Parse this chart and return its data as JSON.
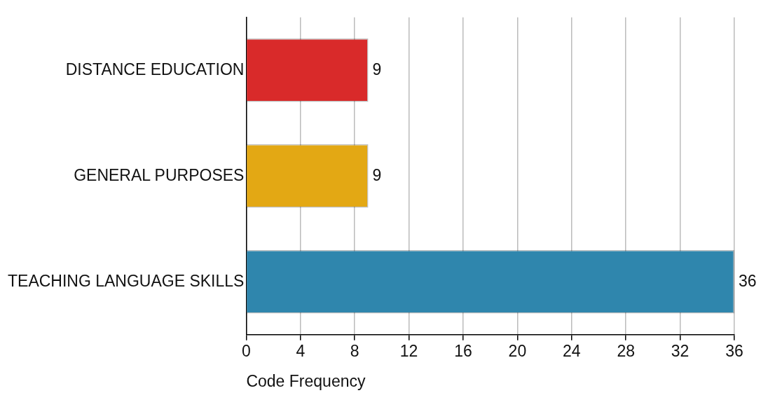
{
  "chart_data": {
    "type": "bar",
    "orientation": "horizontal",
    "xlabel": "Code Frequency",
    "categories": [
      "DISTANCE EDUCATION",
      "GENERAL PURPOSES",
      "TEACHING LANGUAGE SKILLS"
    ],
    "values": [
      9,
      9,
      36
    ],
    "colors": [
      "#d92a2a",
      "#e3a814",
      "#2f86ad"
    ],
    "xlim": [
      0,
      36
    ],
    "xticks": [
      0,
      4,
      8,
      12,
      16,
      20,
      24,
      28,
      32,
      36
    ],
    "grid": "x",
    "data_labels": true,
    "legend": false
  }
}
